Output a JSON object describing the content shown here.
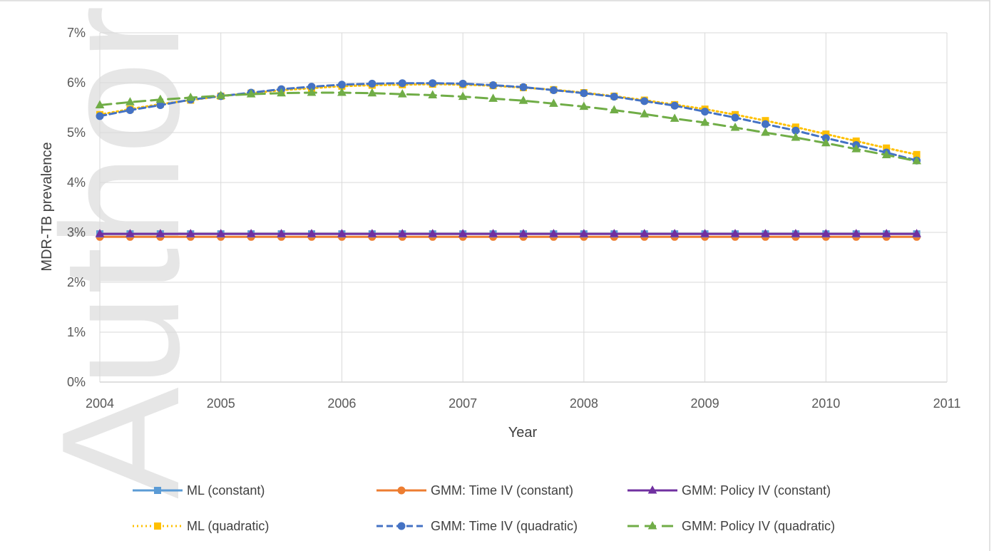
{
  "watermark": "Author Manuscript",
  "chart_data": {
    "type": "line",
    "title": "",
    "xlabel": "Year",
    "ylabel": "MDR-TB prevalence",
    "xlim": [
      2004,
      2011
    ],
    "ylim": [
      0,
      0.07
    ],
    "x_ticks": [
      2004,
      2005,
      2006,
      2007,
      2008,
      2009,
      2010,
      2011
    ],
    "x_tick_labels": [
      "2004",
      "2005",
      "2006",
      "2007",
      "2008",
      "2009",
      "2010",
      "2011"
    ],
    "y_ticks": [
      0,
      0.01,
      0.02,
      0.03,
      0.04,
      0.05,
      0.06,
      0.07
    ],
    "y_tick_labels": [
      "0%",
      "1%",
      "2%",
      "3%",
      "4%",
      "5%",
      "6%",
      "7%"
    ],
    "grid": "horizontal and vertical major gridlines",
    "legend_position": "bottom",
    "x": [
      2004,
      2004.25,
      2004.5,
      2004.75,
      2005,
      2005.25,
      2005.5,
      2005.75,
      2006,
      2006.25,
      2006.5,
      2006.75,
      2007,
      2007.25,
      2007.5,
      2007.75,
      2008,
      2008.25,
      2008.5,
      2008.75,
      2009,
      2009.25,
      2009.5,
      2009.75,
      2010,
      2010.25,
      2010.5,
      2010.75
    ],
    "series": [
      {
        "name": "ML (constant)",
        "color": "#5b9bd5",
        "dash": "solid",
        "marker": "square",
        "values": [
          0.0297,
          0.0297,
          0.0297,
          0.0297,
          0.0297,
          0.0297,
          0.0297,
          0.0297,
          0.0297,
          0.0297,
          0.0297,
          0.0297,
          0.0297,
          0.0297,
          0.0297,
          0.0297,
          0.0297,
          0.0297,
          0.0297,
          0.0297,
          0.0297,
          0.0297,
          0.0297,
          0.0297,
          0.0297,
          0.0297,
          0.0297,
          0.0297
        ]
      },
      {
        "name": "GMM: Time IV (constant)",
        "color": "#ed7d31",
        "dash": "solid",
        "marker": "circle",
        "values": [
          0.0291,
          0.0291,
          0.0291,
          0.0291,
          0.0291,
          0.0291,
          0.0291,
          0.0291,
          0.0291,
          0.0291,
          0.0291,
          0.0291,
          0.0291,
          0.0291,
          0.0291,
          0.0291,
          0.0291,
          0.0291,
          0.0291,
          0.0291,
          0.0291,
          0.0291,
          0.0291,
          0.0291,
          0.0291,
          0.0291,
          0.0291,
          0.0291
        ]
      },
      {
        "name": "GMM: Policy IV (constant)",
        "color": "#7030a0",
        "dash": "solid",
        "marker": "triangle",
        "values": [
          0.0297,
          0.0297,
          0.0297,
          0.0297,
          0.0297,
          0.0297,
          0.0297,
          0.0297,
          0.0297,
          0.0297,
          0.0297,
          0.0297,
          0.0297,
          0.0297,
          0.0297,
          0.0297,
          0.0297,
          0.0297,
          0.0297,
          0.0297,
          0.0297,
          0.0297,
          0.0297,
          0.0297,
          0.0297,
          0.0297,
          0.0297,
          0.0297
        ]
      },
      {
        "name": "ML (quadratic)",
        "color": "#ffc000",
        "dash": "dotted",
        "marker": "square",
        "values": [
          0.0536,
          0.0547,
          0.0557,
          0.0565,
          0.0573,
          0.0579,
          0.0585,
          0.0589,
          0.0593,
          0.0595,
          0.0596,
          0.0597,
          0.0596,
          0.0594,
          0.059,
          0.0586,
          0.058,
          0.0573,
          0.0565,
          0.0556,
          0.0547,
          0.0536,
          0.0524,
          0.0511,
          0.0497,
          0.0483,
          0.0469,
          0.0456
        ]
      },
      {
        "name": "GMM: Time IV (quadratic)",
        "color": "#4472c4",
        "dash": "dashed",
        "marker": "circle",
        "values": [
          0.0533,
          0.0545,
          0.0555,
          0.0566,
          0.0573,
          0.058,
          0.0587,
          0.0592,
          0.0596,
          0.0598,
          0.0599,
          0.0599,
          0.0598,
          0.0595,
          0.0591,
          0.0585,
          0.0579,
          0.0572,
          0.0563,
          0.0554,
          0.0542,
          0.053,
          0.0517,
          0.0504,
          0.0489,
          0.0475,
          0.046,
          0.0444
        ]
      },
      {
        "name": "GMM: Policy IV (quadratic)",
        "color": "#70ad47",
        "dash": "long-dashed",
        "marker": "triangle",
        "values": [
          0.0555,
          0.0561,
          0.0566,
          0.057,
          0.0574,
          0.0577,
          0.0579,
          0.058,
          0.058,
          0.0579,
          0.0577,
          0.0575,
          0.0572,
          0.0568,
          0.0564,
          0.0558,
          0.0552,
          0.0545,
          0.0537,
          0.0528,
          0.052,
          0.051,
          0.05,
          0.049,
          0.0479,
          0.0467,
          0.0455,
          0.0443
        ]
      }
    ]
  }
}
